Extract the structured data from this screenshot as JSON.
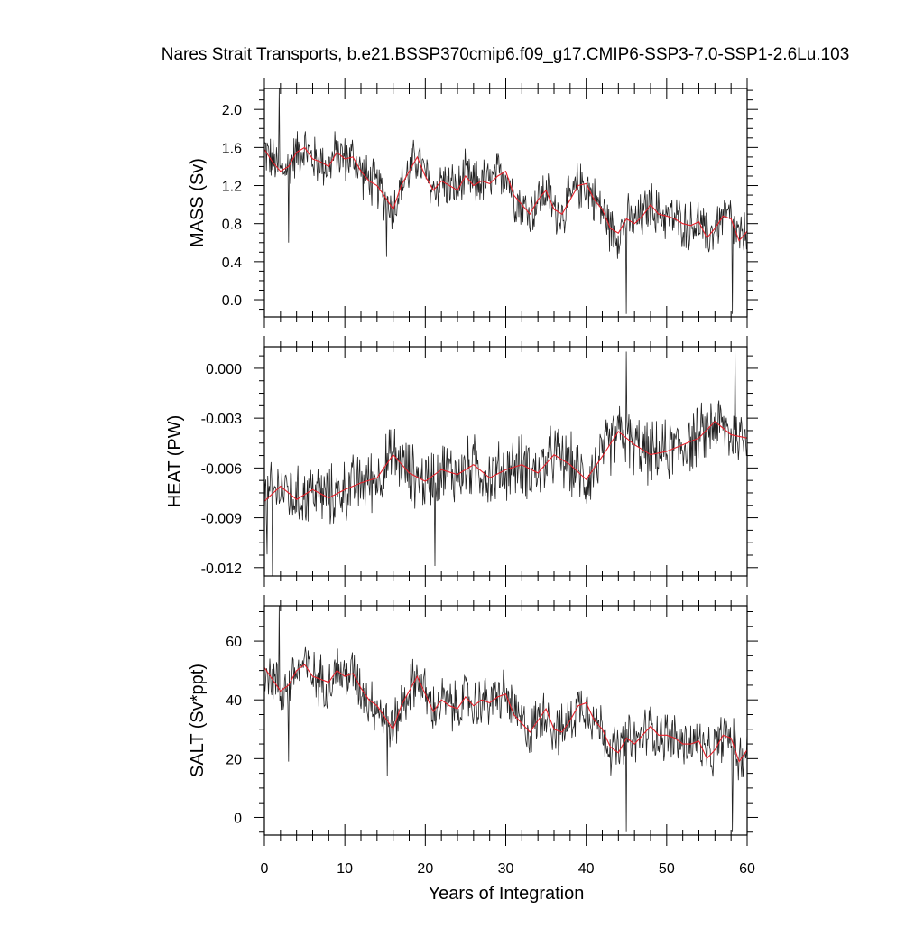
{
  "figure": {
    "title": "Nares Strait Transports, b.e21.BSSP370cmip6.f09_g17.CMIP6-SSP3-7.0-SSP1-2.6Lu.103",
    "xlabel": "Years of Integration"
  },
  "chart_data": [
    {
      "type": "line",
      "ylabel": "MASS (Sv)",
      "xlim": [
        0,
        60
      ],
      "ylim": [
        -0.18,
        2.22
      ],
      "yticks": [
        0.0,
        0.4,
        0.8,
        1.2,
        1.6,
        2.0
      ],
      "ytick_labels": [
        "0.0",
        "0.4",
        "0.8",
        "1.2",
        "1.6",
        "2.0"
      ],
      "xticks": [
        0,
        10,
        20,
        30,
        40,
        50,
        60
      ],
      "xtick_labels": [
        "0",
        "10",
        "20",
        "30",
        "40",
        "50",
        "60"
      ],
      "grid": false,
      "series": [
        {
          "role": "annual running mean",
          "color": "#e8202a",
          "x": [
            0,
            1,
            2,
            3,
            4,
            5,
            6,
            7,
            8,
            9,
            10,
            11,
            12,
            13,
            14,
            15,
            16,
            17,
            18,
            19,
            20,
            21,
            22,
            23,
            24,
            25,
            26,
            27,
            28,
            29,
            30,
            31,
            32,
            33,
            34,
            35,
            36,
            37,
            38,
            39,
            40,
            41,
            42,
            43,
            44,
            45,
            46,
            47,
            48,
            49,
            50,
            51,
            52,
            53,
            54,
            55,
            56,
            57,
            58,
            59,
            60
          ],
          "y": [
            1.58,
            1.45,
            1.35,
            1.4,
            1.55,
            1.6,
            1.48,
            1.45,
            1.4,
            1.55,
            1.48,
            1.5,
            1.35,
            1.25,
            1.2,
            1.08,
            0.95,
            1.2,
            1.35,
            1.5,
            1.3,
            1.15,
            1.25,
            1.2,
            1.15,
            1.3,
            1.2,
            1.25,
            1.22,
            1.3,
            1.35,
            1.1,
            1.0,
            0.9,
            1.05,
            1.15,
            0.95,
            0.9,
            1.05,
            1.2,
            1.22,
            1.05,
            0.95,
            0.75,
            0.7,
            0.85,
            0.8,
            0.88,
            1.0,
            0.9,
            0.88,
            0.85,
            0.8,
            0.78,
            0.82,
            0.65,
            0.75,
            0.88,
            0.85,
            0.62,
            0.72
          ]
        },
        {
          "role": "monthly transport",
          "color": "#222222",
          "x_range": [
            0,
            60
          ],
          "samples": 720,
          "noise_amplitude": 0.22,
          "spikes": [
            [
              1.8,
              2.22
            ],
            [
              15.2,
              0.45
            ],
            [
              45.0,
              -0.15
            ],
            [
              58.2,
              -0.15
            ],
            [
              3.0,
              0.6
            ]
          ]
        }
      ]
    },
    {
      "type": "line",
      "ylabel": "HEAT (PW)",
      "xlim": [
        0,
        60
      ],
      "ylim": [
        -0.0125,
        0.0013
      ],
      "yticks": [
        -0.012,
        -0.009,
        -0.006,
        -0.003,
        0.0
      ],
      "ytick_labels": [
        "-0.012",
        "-0.009",
        "-0.006",
        "-0.003",
        "0.000"
      ],
      "xticks": [
        0,
        10,
        20,
        30,
        40,
        50,
        60
      ],
      "xtick_labels": [
        "0",
        "10",
        "20",
        "30",
        "40",
        "50",
        "60"
      ],
      "grid": false,
      "series": [
        {
          "role": "annual running mean",
          "color": "#e8202a",
          "x": [
            0,
            2,
            4,
            6,
            8,
            10,
            12,
            14,
            16,
            18,
            20,
            22,
            24,
            26,
            28,
            30,
            32,
            34,
            36,
            38,
            40,
            42,
            44,
            46,
            48,
            50,
            52,
            54,
            56,
            58,
            60
          ],
          "y": [
            -0.008,
            -0.0071,
            -0.0079,
            -0.0073,
            -0.0078,
            -0.0073,
            -0.0069,
            -0.0066,
            -0.0052,
            -0.0063,
            -0.0068,
            -0.0061,
            -0.0064,
            -0.0058,
            -0.0066,
            -0.0061,
            -0.0058,
            -0.0063,
            -0.0052,
            -0.0058,
            -0.0067,
            -0.0053,
            -0.0038,
            -0.0046,
            -0.0052,
            -0.005,
            -0.0046,
            -0.0042,
            -0.0032,
            -0.004,
            -0.0042
          ]
        },
        {
          "role": "monthly transport",
          "color": "#222222",
          "x_range": [
            0,
            60
          ],
          "samples": 720,
          "noise_amplitude": 0.0016,
          "spikes": [
            [
              1.0,
              -0.0125
            ],
            [
              21.2,
              -0.0119
            ],
            [
              45.0,
              0.001
            ],
            [
              58.5,
              0.0011
            ],
            [
              0.3,
              -0.0112
            ]
          ]
        }
      ]
    },
    {
      "type": "line",
      "ylabel": "SALT (Sv*ppt)",
      "xlim": [
        0,
        60
      ],
      "ylim": [
        -6,
        72
      ],
      "yticks": [
        0,
        20,
        40,
        60
      ],
      "ytick_labels": [
        "0",
        "20",
        "40",
        "60"
      ],
      "xticks": [
        0,
        10,
        20,
        30,
        40,
        50,
        60
      ],
      "xtick_labels": [
        "0",
        "10",
        "20",
        "30",
        "40",
        "50",
        "60"
      ],
      "grid": false,
      "series": [
        {
          "role": "annual running mean",
          "color": "#e8202a",
          "x": [
            0,
            1,
            2,
            3,
            4,
            5,
            6,
            7,
            8,
            9,
            10,
            11,
            12,
            13,
            14,
            15,
            16,
            17,
            18,
            19,
            20,
            21,
            22,
            23,
            24,
            25,
            26,
            27,
            28,
            29,
            30,
            31,
            32,
            33,
            34,
            35,
            36,
            37,
            38,
            39,
            40,
            41,
            42,
            43,
            44,
            45,
            46,
            47,
            48,
            49,
            50,
            51,
            52,
            53,
            54,
            55,
            56,
            57,
            58,
            59,
            60
          ],
          "y": [
            51,
            47,
            43,
            45,
            50,
            52,
            48,
            47,
            46,
            50,
            48,
            49,
            44,
            40,
            38,
            34,
            30,
            38,
            43,
            48,
            42,
            36,
            40,
            38,
            37,
            41,
            38,
            40,
            39,
            41,
            42,
            35,
            32,
            29,
            33,
            37,
            30,
            29,
            33,
            38,
            39,
            33,
            30,
            24,
            22,
            27,
            25,
            28,
            31,
            28,
            28,
            27,
            25,
            25,
            26,
            20,
            23,
            28,
            27,
            19,
            23
          ]
        },
        {
          "role": "monthly transport",
          "color": "#222222",
          "x_range": [
            0,
            60
          ],
          "samples": 720,
          "noise_amplitude": 7.5,
          "spikes": [
            [
              1.8,
              72
            ],
            [
              15.3,
              14
            ],
            [
              45.0,
              -5
            ],
            [
              58.2,
              -5
            ],
            [
              3.0,
              19
            ]
          ]
        }
      ]
    }
  ]
}
